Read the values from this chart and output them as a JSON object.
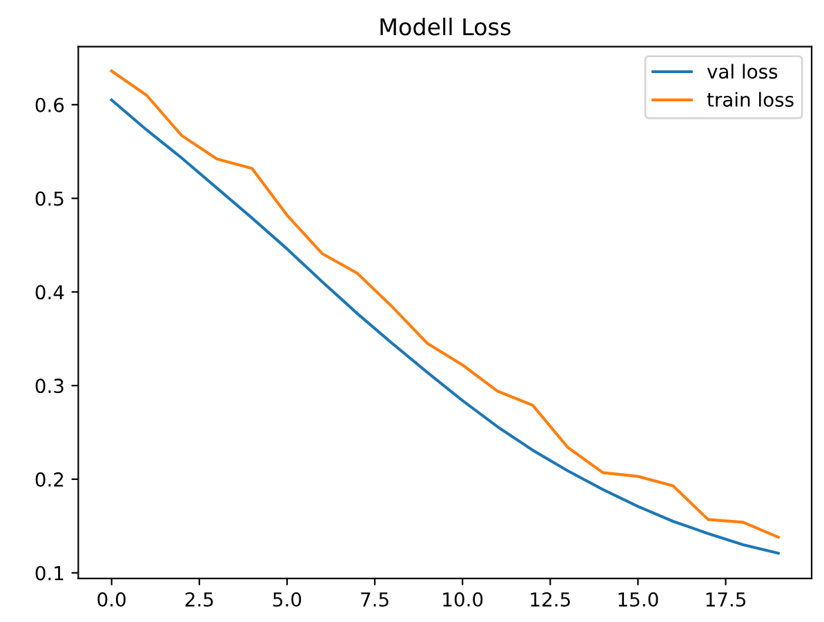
{
  "chart_data": {
    "type": "line",
    "title": "Modell Loss",
    "x": [
      0,
      1,
      2,
      3,
      4,
      5,
      6,
      7,
      8,
      9,
      10,
      11,
      12,
      13,
      14,
      15,
      16,
      17,
      18,
      19
    ],
    "series": [
      {
        "name": "val loss",
        "color": "#1f77b4",
        "values": [
          0.605,
          0.573,
          0.543,
          0.511,
          0.479,
          0.446,
          0.411,
          0.377,
          0.345,
          0.314,
          0.284,
          0.256,
          0.231,
          0.209,
          0.189,
          0.171,
          0.155,
          0.142,
          0.13,
          0.121
        ]
      },
      {
        "name": "train loss",
        "color": "#ff7f0e",
        "values": [
          0.636,
          0.61,
          0.567,
          0.542,
          0.532,
          0.482,
          0.441,
          0.42,
          0.384,
          0.345,
          0.322,
          0.294,
          0.279,
          0.234,
          0.207,
          0.203,
          0.193,
          0.157,
          0.154,
          0.138
        ]
      }
    ],
    "xlim": [
      -0.95,
      19.95
    ],
    "ylim": [
      0.094,
      0.662
    ],
    "xticks": [
      {
        "value": 0,
        "label": "0.0"
      },
      {
        "value": 2.5,
        "label": "2.5"
      },
      {
        "value": 5,
        "label": "5.0"
      },
      {
        "value": 7.5,
        "label": "7.5"
      },
      {
        "value": 10,
        "label": "10.0"
      },
      {
        "value": 12.5,
        "label": "12.5"
      },
      {
        "value": 15,
        "label": "15.0"
      },
      {
        "value": 17.5,
        "label": "17.5"
      }
    ],
    "yticks": [
      0.1,
      0.2,
      0.3,
      0.4,
      0.5,
      0.6
    ],
    "legend": "top right",
    "grid": false
  }
}
